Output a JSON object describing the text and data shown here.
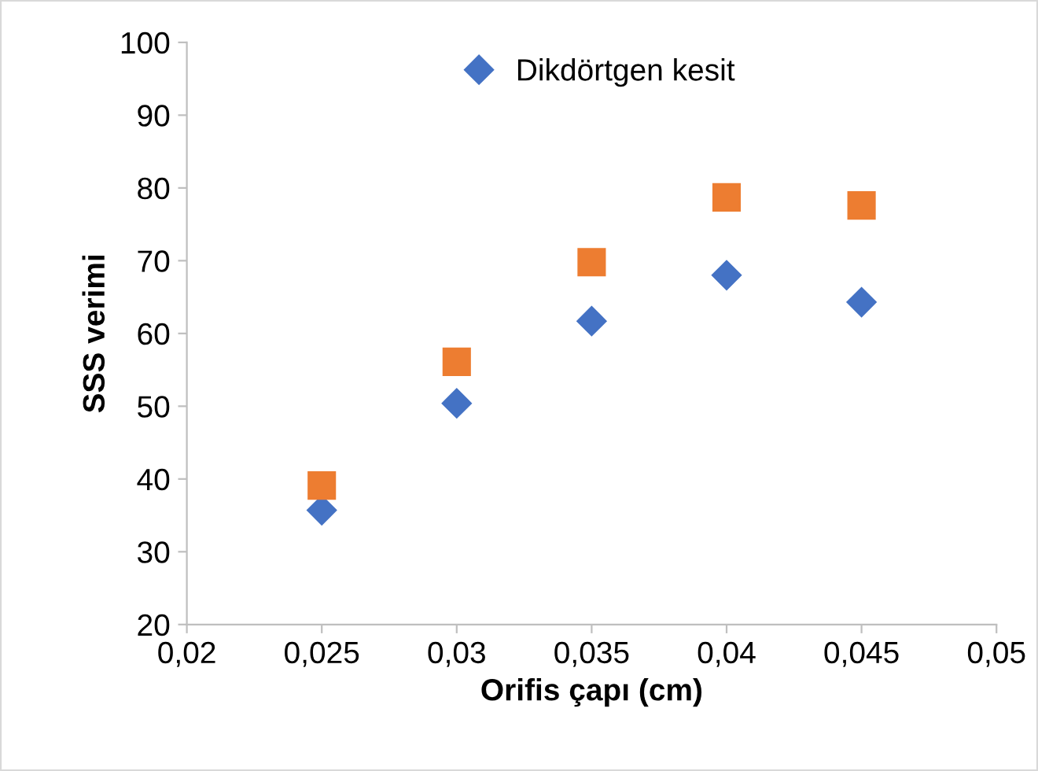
{
  "chart_data": {
    "type": "scatter",
    "xlabel": "Orifis çapı (cm)",
    "ylabel": "SSS verimi",
    "x": [
      0.025,
      0.03,
      0.035,
      0.04,
      0.045
    ],
    "series": [
      {
        "name": "Dikdörtgen kesit",
        "color": "#4472c4",
        "marker": "diamond",
        "values": [
          35.7,
          50.4,
          61.7,
          68,
          64.3
        ]
      },
      {
        "color": "#ed7d31",
        "marker": "square",
        "values": [
          39.1,
          56.1,
          69.8,
          78.7,
          77.6
        ]
      }
    ],
    "xlim": [
      0.02,
      0.05
    ],
    "xticks": [
      {
        "value": 0.02,
        "label": "0,02"
      },
      {
        "value": 0.025,
        "label": "0,025"
      },
      {
        "value": 0.03,
        "label": "0,03"
      },
      {
        "value": 0.035,
        "label": "0,035"
      },
      {
        "value": 0.04,
        "label": "0,04"
      },
      {
        "value": 0.045,
        "label": "0,045"
      },
      {
        "value": 0.05,
        "label": "0,05"
      }
    ],
    "ylim": [
      20,
      100
    ],
    "yticks": [
      20,
      30,
      40,
      50,
      60,
      70,
      80,
      90,
      100
    ],
    "grid": false,
    "legend": "top"
  }
}
